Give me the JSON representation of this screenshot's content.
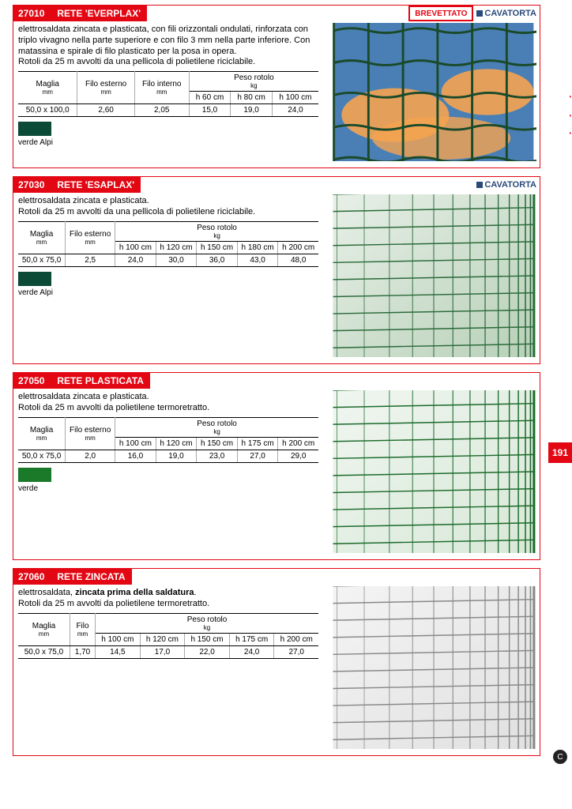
{
  "side": {
    "label": "recinzioni",
    "page_num": "191",
    "footer_glyph": "C"
  },
  "products": [
    {
      "code": "27010",
      "title": "RETE 'EVERPLAX'",
      "badge": "BREVETTATO",
      "brand": "CAVATORTA",
      "desc_html": "elettrosaldata zincata e plasticata, con fili orizzontali ondulati, rinforzata con triplo vivagno nella parte superiore e con filo 3 mm nella parte inferiore. Con matassina e spirale di filo plasticato per la posa in opera.<br>Rotoli da 25 m avvolti da una pellicola di polietilene riciclabile.",
      "table": {
        "head1": [
          "Maglia",
          "Filo esterno",
          "Filo interno",
          "Peso rotolo"
        ],
        "units": [
          "mm",
          "mm",
          "mm",
          "kg"
        ],
        "sub": [
          "h 60 cm",
          "h 80 cm",
          "h 100 cm"
        ],
        "rows": [
          [
            "50,0 x 100,0",
            "2,60",
            "2,05",
            "15,0",
            "19,0",
            "24,0"
          ]
        ]
      },
      "swatch": {
        "color": "#0b4a36",
        "label": "verde Alpi"
      },
      "image_style": "everplax"
    },
    {
      "code": "27030",
      "title": "RETE 'ESAPLAX'",
      "brand": "CAVATORTA",
      "desc_html": "elettrosaldata zincata e plasticata.<br>Rotoli da 25 m avvolti da una pellicola di polietilene riciclabile.",
      "table": {
        "head1": [
          "Maglia",
          "Filo esterno",
          "Peso rotolo"
        ],
        "units": [
          "mm",
          "mm",
          "kg"
        ],
        "sub": [
          "h 100 cm",
          "h 120 cm",
          "h 150 cm",
          "h 180 cm",
          "h 200 cm"
        ],
        "rows": [
          [
            "50,0 x 75,0",
            "2,5",
            "24,0",
            "30,0",
            "36,0",
            "43,0",
            "48,0"
          ]
        ]
      },
      "swatch": {
        "color": "#0b4a36",
        "label": "verde Alpi"
      },
      "image_style": "esaplax",
      "tall": true
    },
    {
      "code": "27050",
      "title": "RETE PLASTICATA",
      "desc_html": "elettrosaldata zincata e plasticata.<br>Rotoli da 25 m avvolti da polietilene termoretratto.",
      "table": {
        "head1": [
          "Maglia",
          "Filo esterno",
          "Peso rotolo"
        ],
        "units": [
          "mm",
          "mm",
          "kg"
        ],
        "sub": [
          "h 100 cm",
          "h 120 cm",
          "h 150 cm",
          "h 175 cm",
          "h 200 cm"
        ],
        "rows": [
          [
            "50,0 x 75,0",
            "2,0",
            "16,0",
            "19,0",
            "23,0",
            "27,0",
            "29,0"
          ]
        ]
      },
      "swatch": {
        "color": "#1a7a2a",
        "label": "verde"
      },
      "image_style": "plasticata",
      "tall": true
    },
    {
      "code": "27060",
      "title": "RETE ZINCATA",
      "desc_html": "elettrosaldata, <b>zincata prima della saldatura</b>.<br>Rotoli da 25 m avvolti da polietilene termoretratto.",
      "table": {
        "head1": [
          "Maglia",
          "Filo",
          "Peso rotolo"
        ],
        "units": [
          "mm",
          "mm",
          "kg"
        ],
        "sub": [
          "h 100 cm",
          "h 120 cm",
          "h 150 cm",
          "h 175 cm",
          "h 200 cm"
        ],
        "rows": [
          [
            "50,0 x 75,0",
            "1,70",
            "14,5",
            "17,0",
            "22,0",
            "24,0",
            "27,0"
          ]
        ]
      },
      "image_style": "zincata",
      "tall": true
    }
  ],
  "image_colors": {
    "everplax": {
      "bg1": "#4a7fb5",
      "bg2": "#f5a450",
      "wire": "#1a4a2a"
    },
    "esaplax": {
      "bg1": "#e8f0e8",
      "bg2": "#b8d0b8",
      "wire": "#2a6a3a"
    },
    "plasticata": {
      "bg1": "#f0f6f0",
      "bg2": "#d8e8d8",
      "wire": "#1a6a2a"
    },
    "zincata": {
      "bg1": "#f4f4f4",
      "bg2": "#e0e0e0",
      "wire": "#888888"
    }
  }
}
